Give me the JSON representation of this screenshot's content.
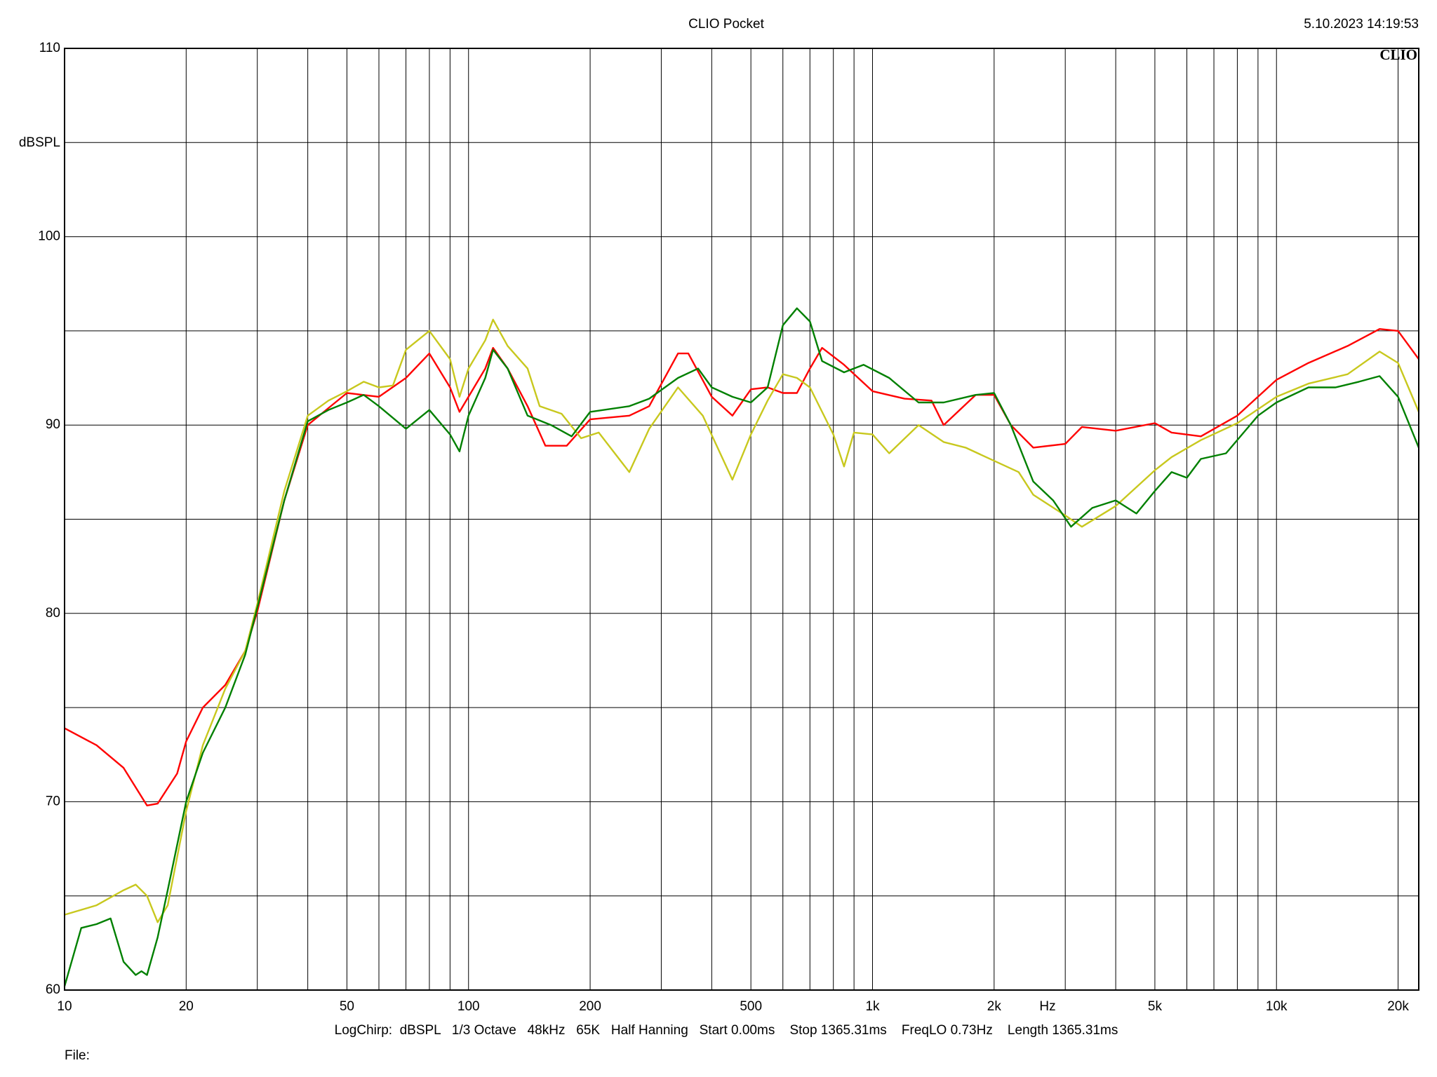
{
  "chart_data": {
    "type": "line",
    "title": "CLIO Pocket",
    "timestamp": "5.10.2023 14:19:53",
    "logo": "CLIO",
    "y_label": "dBSPL",
    "x_label": "Hz",
    "footer": "LogChirp:  dBSPL   1/3 Octave   48kHz   65K   Half Hanning   Start 0.00ms    Stop 1365.31ms    FreqLO 0.73Hz    Length 1365.31ms",
    "file_label": "File:",
    "xscale": "log",
    "grid": true,
    "xlim": [
      10,
      22500
    ],
    "ylim": [
      60,
      110
    ],
    "xticks": [
      10,
      20,
      50,
      100,
      200,
      500,
      {
        "value": 1000,
        "label": "1k"
      },
      {
        "value": 2000,
        "label": "2k"
      },
      {
        "value": 5000,
        "label": "5k"
      },
      {
        "value": 10000,
        "label": "10k"
      },
      {
        "value": 20000,
        "label": "20k"
      }
    ],
    "xminor_ticks": [
      30,
      40,
      60,
      70,
      80,
      90,
      300,
      400,
      600,
      700,
      800,
      900,
      3000,
      4000,
      6000,
      7000,
      8000,
      9000
    ],
    "yticks": [
      60,
      70,
      80,
      90,
      100,
      110
    ],
    "yminor_ticks": [
      65,
      75,
      85,
      95,
      105
    ],
    "series": [
      {
        "color": "#ff0000",
        "x": [
          10,
          12,
          14,
          16,
          17,
          19,
          20,
          22,
          25,
          28,
          30,
          35,
          40,
          45,
          50,
          60,
          70,
          80,
          90,
          95,
          100,
          110,
          115,
          125,
          140,
          155,
          175,
          200,
          250,
          280,
          330,
          350,
          400,
          450,
          500,
          550,
          600,
          650,
          700,
          750,
          850,
          1000,
          1200,
          1400,
          1500,
          1800,
          2000,
          2200,
          2500,
          3000,
          3300,
          4000,
          5000,
          5500,
          6500,
          8000,
          10000,
          12000,
          15000,
          18000,
          20000,
          22500
        ],
        "values": [
          73.9,
          73.0,
          71.8,
          69.8,
          69.9,
          71.5,
          73.2,
          75.0,
          76.2,
          78.0,
          80.1,
          86.0,
          90.0,
          90.9,
          91.7,
          91.5,
          92.5,
          93.8,
          92.0,
          90.7,
          91.5,
          93.0,
          94.1,
          93.0,
          91.0,
          88.9,
          88.9,
          90.3,
          90.5,
          91.0,
          93.8,
          93.8,
          91.5,
          90.5,
          91.9,
          92.0,
          91.7,
          91.7,
          93.0,
          94.1,
          93.2,
          91.8,
          91.4,
          91.3,
          90.0,
          91.6,
          91.6,
          90.0,
          88.8,
          89.0,
          89.9,
          89.7,
          90.1,
          89.6,
          89.4,
          90.5,
          92.4,
          93.3,
          94.2,
          95.1,
          95.0,
          93.5
        ]
      },
      {
        "color": "#c8c81e",
        "x": [
          10,
          12,
          14,
          15,
          16,
          17,
          18,
          20,
          22,
          25,
          28,
          30,
          35,
          40,
          45,
          50,
          55,
          60,
          65,
          70,
          80,
          90,
          95,
          100,
          110,
          115,
          125,
          140,
          150,
          170,
          190,
          210,
          250,
          280,
          330,
          380,
          450,
          500,
          550,
          600,
          650,
          700,
          800,
          850,
          900,
          1000,
          1100,
          1300,
          1500,
          1700,
          2000,
          2300,
          2500,
          3000,
          3300,
          4000,
          5000,
          5500,
          6500,
          8000,
          10000,
          12000,
          15000,
          18000,
          20000,
          22500
        ],
        "values": [
          64.0,
          64.5,
          65.3,
          65.6,
          65.0,
          63.6,
          64.5,
          69.5,
          73.0,
          76.0,
          78.0,
          80.5,
          86.5,
          90.5,
          91.3,
          91.8,
          92.3,
          92.0,
          92.1,
          94.0,
          95.0,
          93.5,
          91.5,
          93.0,
          94.5,
          95.6,
          94.2,
          93.0,
          91.0,
          90.6,
          89.3,
          89.6,
          87.5,
          89.8,
          92.0,
          90.5,
          87.1,
          89.5,
          91.3,
          92.7,
          92.5,
          92.0,
          89.5,
          87.8,
          89.6,
          89.5,
          88.5,
          90.0,
          89.1,
          88.8,
          88.1,
          87.5,
          86.3,
          85.2,
          84.6,
          85.7,
          87.6,
          88.3,
          89.2,
          90.1,
          91.5,
          92.2,
          92.7,
          93.9,
          93.3,
          90.7
        ]
      },
      {
        "color": "#008000",
        "x": [
          10,
          11,
          12,
          13,
          14,
          15,
          15.5,
          16,
          17,
          18,
          20,
          22,
          25,
          28,
          30,
          35,
          40,
          45,
          50,
          55,
          60,
          70,
          80,
          90,
          95,
          100,
          110,
          115,
          125,
          140,
          160,
          180,
          200,
          250,
          280,
          330,
          370,
          400,
          450,
          500,
          550,
          600,
          650,
          700,
          750,
          850,
          950,
          1100,
          1300,
          1500,
          1800,
          2000,
          2200,
          2500,
          2800,
          3100,
          3500,
          4000,
          4500,
          5000,
          5500,
          6000,
          6500,
          7500,
          9000,
          10000,
          12000,
          14000,
          16000,
          18000,
          20000,
          22500
        ],
        "values": [
          60.2,
          63.3,
          63.5,
          63.8,
          61.5,
          60.8,
          61.0,
          60.8,
          62.8,
          65.3,
          70.0,
          72.6,
          75.0,
          77.8,
          80.3,
          86.0,
          90.2,
          90.8,
          91.2,
          91.6,
          91.0,
          89.8,
          90.8,
          89.5,
          88.6,
          90.5,
          92.5,
          94.0,
          93.0,
          90.5,
          90.0,
          89.4,
          90.7,
          91.0,
          91.4,
          92.5,
          93.0,
          92.0,
          91.5,
          91.2,
          92.0,
          95.3,
          96.2,
          95.5,
          93.4,
          92.8,
          93.2,
          92.5,
          91.2,
          91.2,
          91.6,
          91.7,
          90.0,
          87.0,
          86.0,
          84.6,
          85.6,
          86.0,
          85.3,
          86.5,
          87.5,
          87.2,
          88.2,
          88.5,
          90.5,
          91.2,
          92.0,
          92.0,
          92.3,
          92.6,
          91.5,
          88.8
        ]
      }
    ]
  }
}
